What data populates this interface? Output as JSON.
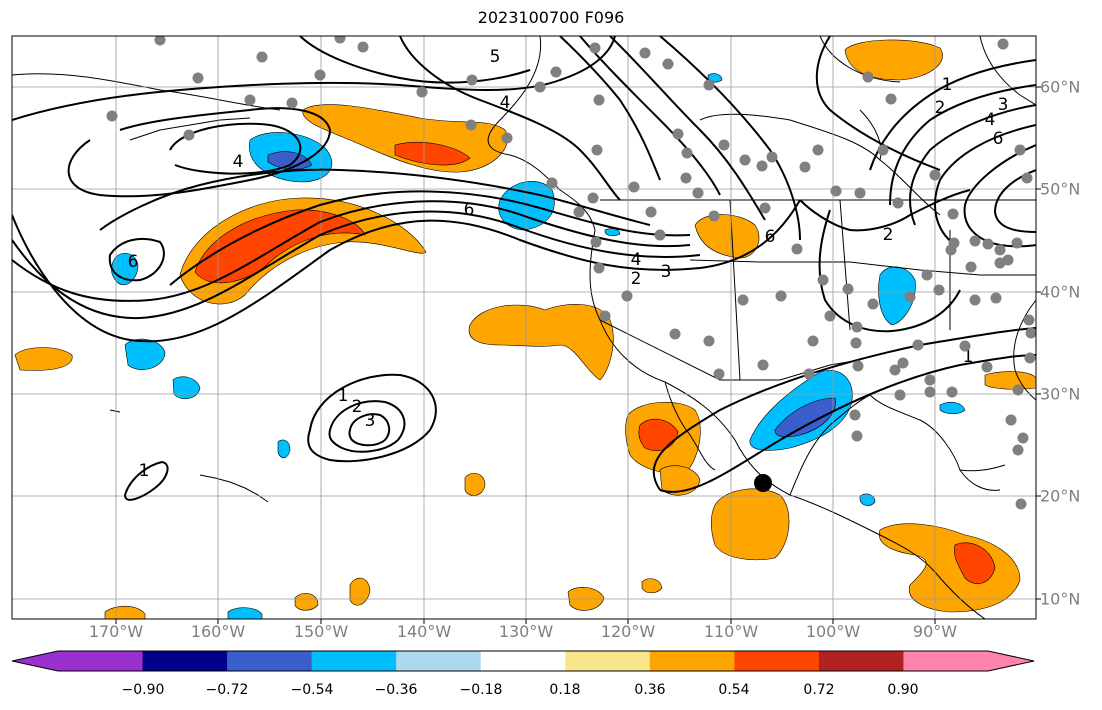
{
  "title": "2023100700 F096",
  "lon_labels": [
    "170°W",
    "160°W",
    "150°W",
    "140°W",
    "130°W",
    "120°W",
    "110°W",
    "100°W",
    "90°W"
  ],
  "lat_labels": [
    "60°N",
    "50°N",
    "40°N",
    "30°N",
    "20°N",
    "10°N"
  ],
  "colorbar": {
    "labels": [
      "−0.90",
      "−0.72",
      "−0.54",
      "−0.36",
      "−0.18",
      "0.18",
      "0.36",
      "0.54",
      "0.72",
      "0.90"
    ],
    "colors": [
      "#9b30d0",
      "#00008b",
      "#3a5fcd",
      "#00bfff",
      "#add8f0",
      "#ffffff",
      "#f9e68a",
      "#ffa500",
      "#ff4500",
      "#b22222",
      "#ff85ad"
    ]
  },
  "contour_labels": [
    "5",
    "4",
    "4",
    "6",
    "6",
    "4",
    "3",
    "2",
    "6",
    "1",
    "2",
    "3",
    "4",
    "6",
    "2",
    "1",
    "1",
    "2",
    "3",
    "1"
  ],
  "marker_colors": {
    "stations": "#808080",
    "point": "#000000",
    "contours": "#000000"
  }
}
